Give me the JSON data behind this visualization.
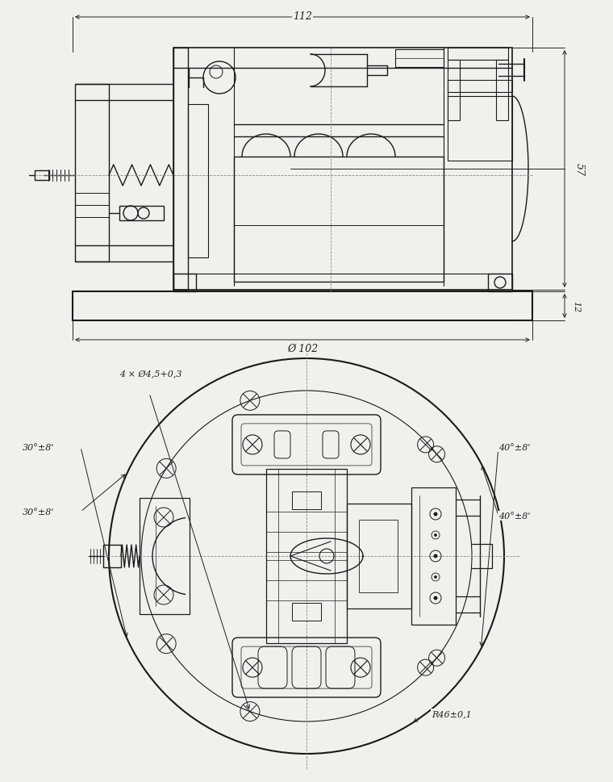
{
  "bg_color": "#f0f0ed",
  "line_color": "#1a1a1a",
  "dim_color": "#222222",
  "fig_width": 7.6,
  "fig_height": 9.7,
  "dpi": 100,
  "annotations_top": {
    "dim_112": "112",
    "dim_57": "57",
    "dim_12": "12",
    "dim_102": "Ø 102"
  },
  "annotations_bottom": {
    "holes": "4 × Ø4,5+0,3",
    "angle1_left_top": "30°±8'",
    "angle2_left_bot": "30°±8'",
    "angle1_right_top": "40°±8'",
    "angle2_right_bot": "40°±8'",
    "radius": "R46±0,1"
  }
}
